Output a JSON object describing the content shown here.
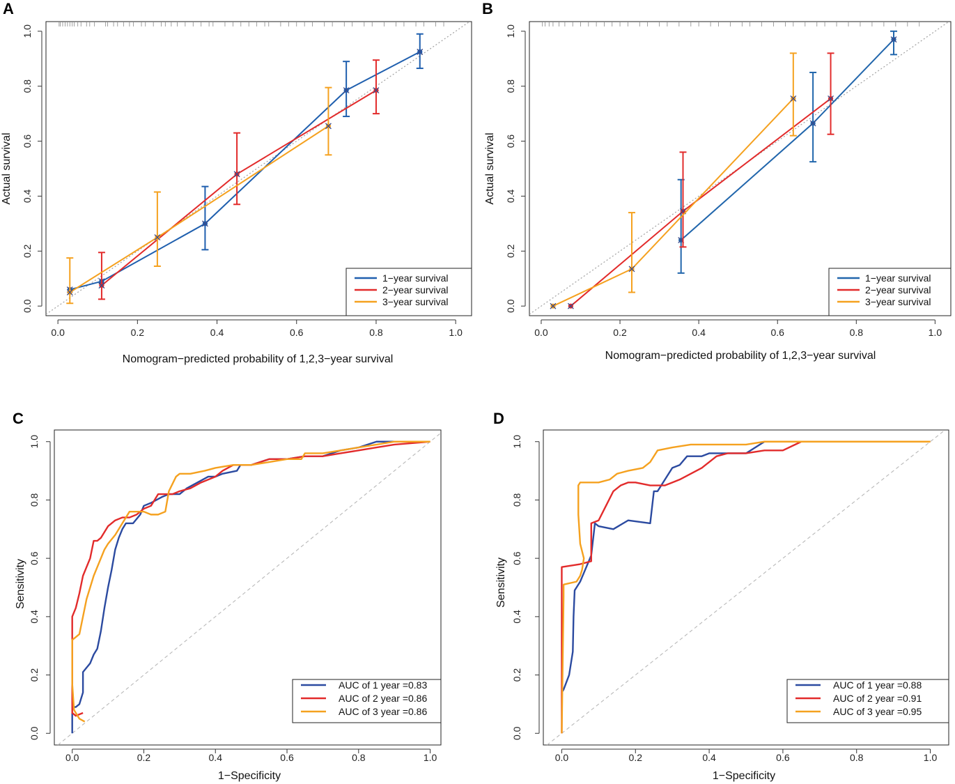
{
  "colors": {
    "blue": "#1f5fae",
    "red": "#e22b2b",
    "orange": "#f5a11f",
    "cal_blue": "#2166ac",
    "roc_blue": "#2b4aa0",
    "diag": "#a0a0a0",
    "diag_roc": "#b8b8b8"
  },
  "chart_data": [
    {
      "panel": "A",
      "type": "line",
      "title": "",
      "xlabel": "Nomogram−predicted probability of 1,2,3−year survival",
      "ylabel": "Actual survival",
      "xlim": [
        -0.03,
        1.04
      ],
      "ylim": [
        -0.035,
        1.035
      ],
      "xticks": [
        "0.0",
        "0.2",
        "0.4",
        "0.6",
        "0.8",
        "1.0"
      ],
      "yticks": [
        "0.0",
        "0.2",
        "0.4",
        "0.6",
        "0.8",
        "1.0"
      ],
      "legend": [
        "1−year survival",
        "2−year survival",
        "3−year survival"
      ],
      "legend_position": "bottom-right",
      "reference_line": "diagonal",
      "rug": [
        0.003,
        0.006,
        0.012,
        0.018,
        0.024,
        0.03,
        0.036,
        0.041,
        0.05,
        0.058,
        0.072,
        0.08,
        0.092,
        0.12,
        0.125,
        0.14,
        0.15,
        0.165,
        0.18,
        0.19,
        0.21,
        0.22,
        0.24,
        0.26,
        0.27,
        0.285,
        0.3,
        0.32,
        0.34,
        0.36,
        0.38,
        0.39,
        0.42,
        0.44,
        0.46,
        0.48,
        0.5,
        0.52,
        0.53,
        0.56,
        0.58,
        0.6,
        0.62,
        0.64,
        0.67,
        0.69,
        0.72,
        0.74,
        0.77,
        0.79,
        0.82,
        0.85,
        0.87,
        0.9,
        0.92,
        0.95,
        0.97
      ],
      "series": [
        {
          "name": "1−year survival",
          "color": "blue",
          "points": [
            {
              "x": 0.03,
              "y": 0.06
            },
            {
              "x": 0.11,
              "y": 0.09
            },
            {
              "x": 0.37,
              "y": 0.3,
              "lo": 0.205,
              "hi": 0.435
            },
            {
              "x": 0.725,
              "y": 0.785,
              "lo": 0.69,
              "hi": 0.89
            },
            {
              "x": 0.91,
              "y": 0.925,
              "lo": 0.865,
              "hi": 0.99
            }
          ]
        },
        {
          "name": "2−year survival",
          "color": "red",
          "points": [
            {
              "x": 0.11,
              "y": 0.075,
              "lo": 0.025,
              "hi": 0.195
            },
            {
              "x": 0.45,
              "y": 0.48,
              "lo": 0.37,
              "hi": 0.63
            },
            {
              "x": 0.8,
              "y": 0.785,
              "lo": 0.7,
              "hi": 0.895
            }
          ]
        },
        {
          "name": "3−year survival",
          "color": "orange",
          "points": [
            {
              "x": 0.03,
              "y": 0.05,
              "lo": 0.01,
              "hi": 0.175
            },
            {
              "x": 0.25,
              "y": 0.25,
              "lo": 0.145,
              "hi": 0.415
            },
            {
              "x": 0.68,
              "y": 0.655,
              "lo": 0.55,
              "hi": 0.795
            }
          ]
        }
      ]
    },
    {
      "panel": "B",
      "type": "line",
      "title": "",
      "xlabel": "Nomogram−predicted probability of 1,2,3−year survival",
      "ylabel": "Actual survival",
      "xlim": [
        -0.03,
        1.04
      ],
      "ylim": [
        -0.035,
        1.035
      ],
      "xticks": [
        "0.0",
        "0.2",
        "0.4",
        "0.6",
        "0.8",
        "1.0"
      ],
      "yticks": [
        "0.0",
        "0.2",
        "0.4",
        "0.6",
        "0.8",
        "1.0"
      ],
      "legend": [
        "1−year survival",
        "2−year survival",
        "3−year survival"
      ],
      "legend_position": "bottom-right",
      "reference_line": "diagonal",
      "rug": [
        0.003,
        0.01,
        0.02,
        0.03,
        0.045,
        0.06,
        0.08,
        0.1,
        0.12,
        0.14,
        0.16,
        0.18,
        0.2,
        0.22,
        0.25,
        0.27,
        0.3,
        0.32,
        0.35,
        0.38,
        0.4,
        0.43,
        0.45,
        0.48,
        0.51,
        0.53,
        0.56,
        0.59,
        0.62,
        0.64,
        0.67,
        0.7,
        0.72,
        0.75,
        0.78,
        0.81,
        0.84,
        0.87,
        0.9,
        0.93,
        0.96
      ],
      "series": [
        {
          "name": "1−year survival",
          "color": "cal_blue",
          "points": [
            {
              "x": 0.355,
              "y": 0.24,
              "lo": 0.12,
              "hi": 0.46
            },
            {
              "x": 0.69,
              "y": 0.665,
              "lo": 0.525,
              "hi": 0.85
            },
            {
              "x": 0.895,
              "y": 0.97,
              "lo": 0.915,
              "hi": 1.0
            }
          ]
        },
        {
          "name": "2−year survival",
          "color": "red",
          "points": [
            {
              "x": 0.075,
              "y": 0.0
            },
            {
              "x": 0.36,
              "y": 0.345,
              "lo": 0.215,
              "hi": 0.56
            },
            {
              "x": 0.735,
              "y": 0.755,
              "lo": 0.625,
              "hi": 0.92
            }
          ]
        },
        {
          "name": "3−year survival",
          "color": "orange",
          "points": [
            {
              "x": 0.03,
              "y": 0.0
            },
            {
              "x": 0.23,
              "y": 0.135,
              "lo": 0.05,
              "hi": 0.34
            },
            {
              "x": 0.64,
              "y": 0.755,
              "lo": 0.62,
              "hi": 0.92
            }
          ]
        }
      ]
    },
    {
      "panel": "C",
      "type": "line",
      "title": "",
      "xlabel": "1−Specificity",
      "ylabel": "Sensitivity",
      "xlim": [
        -0.05,
        1.03
      ],
      "ylim": [
        -0.04,
        1.04
      ],
      "xticks": [
        "0.0",
        "0.2",
        "0.4",
        "0.6",
        "0.8",
        "1.0"
      ],
      "yticks": [
        "0.0",
        "0.2",
        "0.4",
        "0.6",
        "0.8",
        "1.0"
      ],
      "legend": [
        "AUC of 1 year =0.83",
        "AUC of 2 year =0.86",
        "AUC of 3 year =0.86"
      ],
      "legend_position": "bottom-right",
      "reference_line": "diagonal-dashed",
      "series": [
        {
          "name": "AUC of 1 year =0.83",
          "color": "roc_blue",
          "x": [
            0,
            0,
            0.01,
            0.02,
            0.025,
            0.03,
            0.03,
            0.05,
            0.06,
            0.07,
            0.075,
            0.08,
            0.085,
            0.09,
            0.1,
            0.11,
            0.12,
            0.13,
            0.14,
            0.15,
            0.17,
            0.19,
            0.2,
            0.22,
            0.25,
            0.27,
            0.3,
            0.32,
            0.35,
            0.38,
            0.4,
            0.42,
            0.46,
            0.47,
            0.5,
            0.55,
            0.6,
            0.65,
            0.7,
            0.75,
            0.8,
            0.85,
            0.9,
            1.0
          ],
          "y": [
            0,
            0.09,
            0.09,
            0.1,
            0.12,
            0.14,
            0.21,
            0.24,
            0.27,
            0.29,
            0.32,
            0.35,
            0.39,
            0.43,
            0.5,
            0.56,
            0.63,
            0.67,
            0.7,
            0.72,
            0.72,
            0.75,
            0.78,
            0.79,
            0.81,
            0.82,
            0.82,
            0.84,
            0.86,
            0.88,
            0.88,
            0.89,
            0.9,
            0.92,
            0.92,
            0.94,
            0.94,
            0.95,
            0.95,
            0.97,
            0.98,
            1.0,
            1.0,
            1.0
          ]
        },
        {
          "name": "AUC of 2 year =0.86",
          "color": "red",
          "x": [
            0.03,
            0.01,
            0,
            0,
            0.01,
            0.02,
            0.025,
            0.03,
            0.04,
            0.05,
            0.06,
            0.07,
            0.08,
            0.09,
            0.1,
            0.12,
            0.14,
            0.16,
            0.18,
            0.2,
            0.22,
            0.23,
            0.24,
            0.25,
            0.28,
            0.3,
            0.33,
            0.36,
            0.4,
            0.42,
            0.45,
            0.5,
            0.55,
            0.6,
            0.65,
            0.7,
            0.75,
            0.8,
            0.85,
            0.9,
            1.0
          ],
          "y": [
            0.07,
            0.06,
            0.07,
            0.4,
            0.43,
            0.48,
            0.51,
            0.54,
            0.57,
            0.6,
            0.66,
            0.66,
            0.67,
            0.69,
            0.71,
            0.73,
            0.74,
            0.74,
            0.75,
            0.77,
            0.78,
            0.8,
            0.82,
            0.82,
            0.82,
            0.83,
            0.84,
            0.86,
            0.88,
            0.9,
            0.92,
            0.92,
            0.94,
            0.94,
            0.95,
            0.95,
            0.96,
            0.97,
            0.98,
            0.99,
            1.0
          ]
        },
        {
          "name": "AUC of 3 year =0.86",
          "color": "orange",
          "x": [
            0.035,
            0.02,
            0.005,
            0,
            0,
            0.01,
            0.02,
            0.03,
            0.04,
            0.05,
            0.06,
            0.07,
            0.08,
            0.09,
            0.1,
            0.12,
            0.14,
            0.16,
            0.18,
            0.2,
            0.22,
            0.24,
            0.26,
            0.27,
            0.29,
            0.3,
            0.33,
            0.37,
            0.4,
            0.45,
            0.5,
            0.55,
            0.6,
            0.64,
            0.65,
            0.7,
            0.75,
            0.8,
            0.85,
            0.9,
            1.0
          ],
          "y": [
            0.04,
            0.05,
            0.08,
            0.17,
            0.32,
            0.33,
            0.34,
            0.4,
            0.46,
            0.5,
            0.54,
            0.57,
            0.6,
            0.63,
            0.65,
            0.68,
            0.72,
            0.76,
            0.76,
            0.76,
            0.75,
            0.75,
            0.76,
            0.83,
            0.88,
            0.89,
            0.89,
            0.9,
            0.91,
            0.92,
            0.92,
            0.93,
            0.94,
            0.94,
            0.96,
            0.96,
            0.97,
            0.98,
            0.99,
            1.0,
            1.0
          ]
        }
      ]
    },
    {
      "panel": "D",
      "type": "line",
      "title": "",
      "xlabel": "1−Specificity",
      "ylabel": "Sensitivity",
      "xlim": [
        -0.05,
        1.05
      ],
      "ylim": [
        -0.04,
        1.04
      ],
      "xticks": [
        "0.0",
        "0.2",
        "0.4",
        "0.6",
        "0.8",
        "1.0"
      ],
      "yticks": [
        "0.0",
        "0.2",
        "0.4",
        "0.6",
        "0.8",
        "1.0"
      ],
      "legend": [
        "AUC of 1 year =0.88",
        "AUC of 2 year =0.91",
        "AUC of 3 year =0.95"
      ],
      "legend_position": "bottom-right",
      "reference_line": "diagonal-dashed",
      "series": [
        {
          "name": "AUC of 1 year =0.88",
          "color": "roc_blue",
          "x": [
            0,
            0.005,
            0.02,
            0.03,
            0.032,
            0.035,
            0.04,
            0.05,
            0.06,
            0.07,
            0.08,
            0.09,
            0.1,
            0.14,
            0.18,
            0.24,
            0.25,
            0.26,
            0.28,
            0.3,
            0.32,
            0.34,
            0.36,
            0.38,
            0.4,
            0.5,
            0.55,
            0.6,
            0.7,
            0.8,
            1.0
          ],
          "y": [
            0.14,
            0.15,
            0.2,
            0.28,
            0.4,
            0.49,
            0.5,
            0.52,
            0.55,
            0.58,
            0.61,
            0.72,
            0.71,
            0.7,
            0.73,
            0.72,
            0.83,
            0.83,
            0.87,
            0.91,
            0.92,
            0.95,
            0.95,
            0.95,
            0.96,
            0.96,
            1.0,
            1.0,
            1.0,
            1.0,
            1.0
          ]
        },
        {
          "name": "AUC of 2 year =0.91",
          "color": "red",
          "x": [
            0,
            0,
            0.05,
            0.08,
            0.08,
            0.1,
            0.12,
            0.14,
            0.16,
            0.18,
            0.2,
            0.24,
            0.28,
            0.3,
            0.32,
            0.35,
            0.38,
            0.4,
            0.42,
            0.45,
            0.5,
            0.55,
            0.6,
            0.65,
            0.7,
            0.8,
            0.9,
            1.0
          ],
          "y": [
            0,
            0.57,
            0.58,
            0.59,
            0.72,
            0.73,
            0.78,
            0.83,
            0.85,
            0.86,
            0.86,
            0.85,
            0.85,
            0.86,
            0.87,
            0.89,
            0.91,
            0.93,
            0.95,
            0.96,
            0.96,
            0.97,
            0.97,
            1.0,
            1.0,
            1.0,
            1.0,
            1.0
          ]
        },
        {
          "name": "AUC of 3 year =0.95",
          "color": "orange",
          "x": [
            0,
            0.005,
            0.005,
            0.04,
            0.05,
            0.055,
            0.06,
            0.05,
            0.045,
            0.045,
            0.05,
            0.07,
            0.1,
            0.13,
            0.15,
            0.18,
            0.22,
            0.24,
            0.26,
            0.3,
            0.35,
            0.4,
            0.45,
            0.5,
            0.55,
            0.6,
            0.7,
            0.8,
            0.9,
            1.0
          ],
          "y": [
            0,
            0.47,
            0.51,
            0.52,
            0.54,
            0.56,
            0.6,
            0.65,
            0.75,
            0.85,
            0.86,
            0.86,
            0.86,
            0.87,
            0.89,
            0.9,
            0.91,
            0.93,
            0.97,
            0.98,
            0.99,
            0.99,
            0.99,
            0.99,
            1.0,
            1.0,
            1.0,
            1.0,
            1.0,
            1.0
          ]
        }
      ]
    }
  ]
}
